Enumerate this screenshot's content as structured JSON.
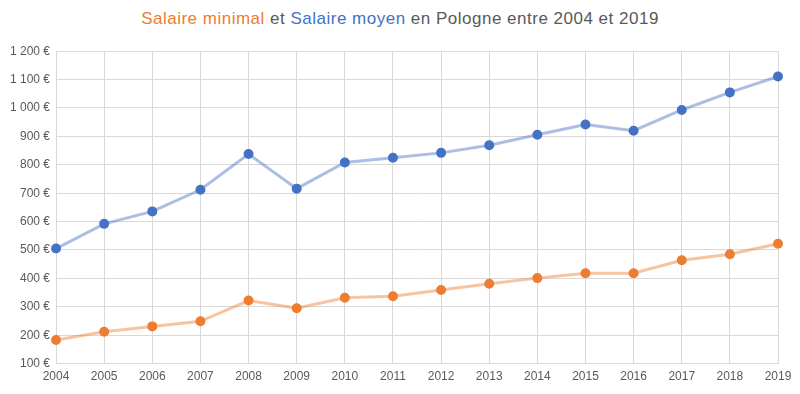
{
  "chart_data": {
    "type": "line",
    "title": "Salaire minimal et Salaire moyen en Pologne entre 2004 et 2019",
    "categories": [
      "2004",
      "2005",
      "2006",
      "2007",
      "2008",
      "2009",
      "2010",
      "2011",
      "2012",
      "2013",
      "2014",
      "2015",
      "2016",
      "2017",
      "2018",
      "2019"
    ],
    "series": [
      {
        "name": "Salaire moyen",
        "color": "#4472c4",
        "marker": "circle",
        "values": [
          505,
          592,
          636,
          712,
          838,
          716,
          808,
          825,
          842,
          869,
          906,
          942,
          920,
          993,
          1055,
          1111
        ]
      },
      {
        "name": "Salaire minimal",
        "color": "#ed7d31",
        "marker": "circle",
        "values": [
          183,
          212,
          231,
          249,
          322,
          295,
          332,
          337,
          359,
          381,
          401,
          418,
          418,
          464,
          485,
          522
        ]
      }
    ],
    "ylim": [
      100,
      1200
    ],
    "yticks": [
      {
        "value": 100,
        "label": "100 €"
      },
      {
        "value": 200,
        "label": "200 €"
      },
      {
        "value": 300,
        "label": "300 €"
      },
      {
        "value": 400,
        "label": "400 €"
      },
      {
        "value": 500,
        "label": "500 €"
      },
      {
        "value": 600,
        "label": "600 €"
      },
      {
        "value": 700,
        "label": "700 €"
      },
      {
        "value": 800,
        "label": "800 €"
      },
      {
        "value": 900,
        "label": "900 €"
      },
      {
        "value": 1000,
        "label": "1 000 €"
      },
      {
        "value": 1100,
        "label": "1 100 €"
      },
      {
        "value": 1200,
        "label": "1 200 €"
      }
    ],
    "grid": true
  }
}
